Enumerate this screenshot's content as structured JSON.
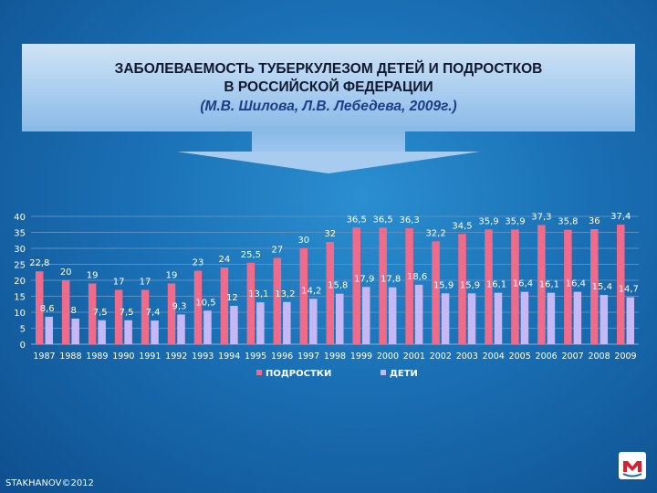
{
  "title": {
    "line1": "ЗАБОЛЕВАЕМОСТЬ ТУБЕРКУЛЕЗОМ ДЕТЕЙ И ПОДРОСТКОВ",
    "line2": "В РОССИЙСКОЙ ФЕДЕРАЦИИ",
    "line3": "(М.В. Шилова, Л.В. Лебедева, 2009г.)"
  },
  "footer": "STAKHANOV©2012",
  "colors": {
    "teens": "#f06a8a",
    "children": "#c6b8f5",
    "axis_text": "#ffffff",
    "label_teens": "#ffffff",
    "label_children": "#ffffff"
  },
  "chart_data": {
    "type": "bar",
    "title": "ЗАБОЛЕВАЕМОСТЬ ТУБЕРКУЛЕЗОМ ДЕТЕЙ И ПОДРОСТКОВ В РОССИЙСКОЙ ФЕДЕРАЦИИ",
    "categories": [
      "1987",
      "1988",
      "1989",
      "1990",
      "1991",
      "1992",
      "1993",
      "1994",
      "1995",
      "1996",
      "1997",
      "1998",
      "1999",
      "2000",
      "2001",
      "2002",
      "2003",
      "2004",
      "2005",
      "2006",
      "2007",
      "2008",
      "2009"
    ],
    "series": [
      {
        "name": "ПОДРОСТКИ",
        "values": [
          22.8,
          20,
          19,
          17,
          17,
          19,
          23,
          24,
          25.5,
          27,
          30,
          32,
          36.5,
          36.5,
          36.3,
          32.2,
          34.5,
          35.9,
          35.9,
          37.3,
          35.8,
          36,
          37.4
        ],
        "labels": [
          "22,8",
          "20",
          "19",
          "17",
          "17",
          "19",
          "23",
          "24",
          "25,5",
          "27",
          "30",
          "32",
          "36,5",
          "36,5",
          "36,3",
          "32,2",
          "34,5",
          "35,9",
          "35,9",
          "37,3",
          "35,8",
          "36",
          "37,4"
        ]
      },
      {
        "name": "ДЕТИ",
        "values": [
          8.6,
          8,
          7.5,
          7.5,
          7.4,
          9.3,
          10.5,
          12,
          13.1,
          13.2,
          14.2,
          15.8,
          17.9,
          17.8,
          18.6,
          15.9,
          15.9,
          16.1,
          16.4,
          16.1,
          16.4,
          15.4,
          14.7
        ],
        "labels": [
          "8,6",
          "8",
          "7,5",
          "7,5",
          "7,4",
          "9,3",
          "10,5",
          "12",
          "13,1",
          "13,2",
          "14,2",
          "15,8",
          "17,9",
          "17,8",
          "18,6",
          "15,9",
          "15,9",
          "16,1",
          "16,4",
          "16,1",
          "16,4",
          "15,4",
          "14,7"
        ]
      }
    ],
    "yticks": [
      "0",
      "5",
      "10",
      "15",
      "20",
      "25",
      "30",
      "35",
      "40"
    ],
    "ylim": [
      0,
      40
    ],
    "xlabel": "",
    "ylabel": "",
    "legend_position": "bottom"
  }
}
